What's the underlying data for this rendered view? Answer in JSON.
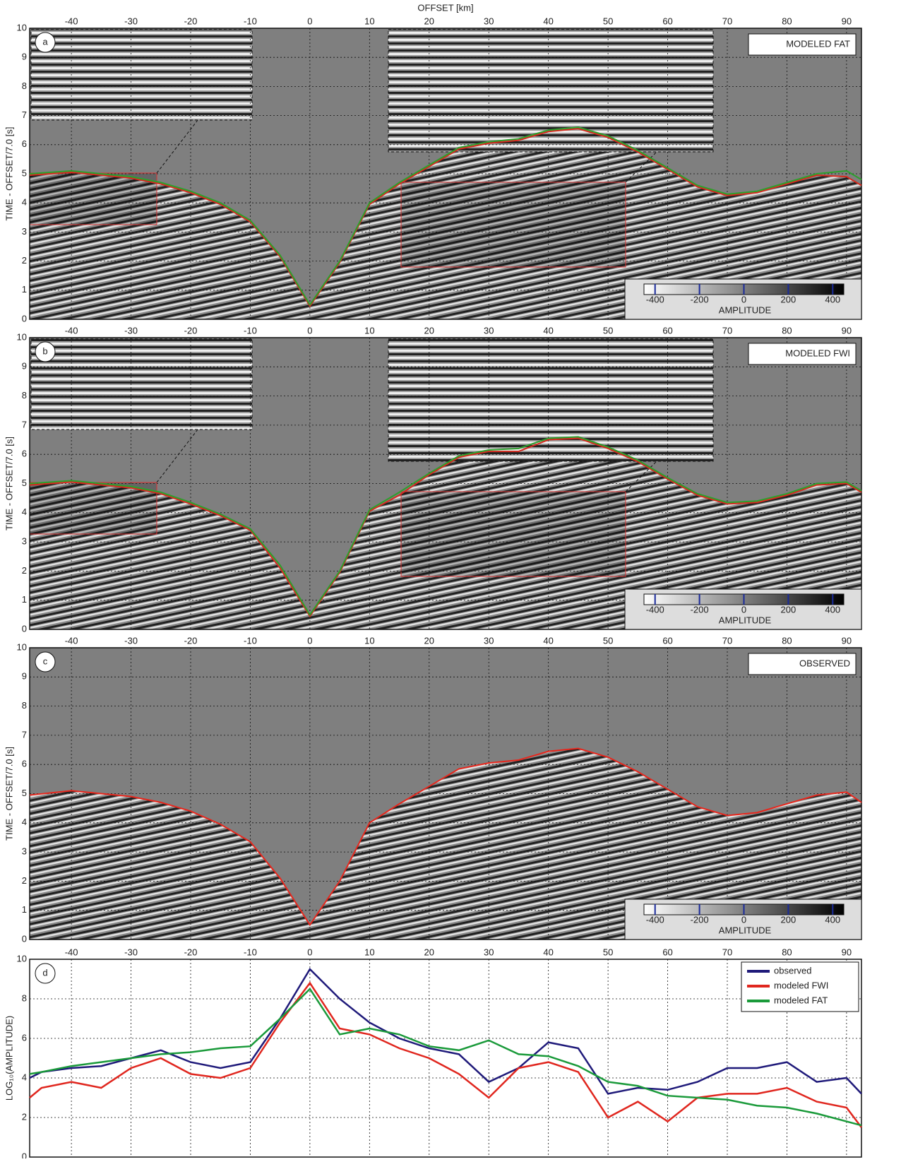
{
  "chart_data": [
    {
      "type": "seismic",
      "label": "a",
      "title": "MODELED FAT",
      "xlabel": "OFFSET [km]",
      "ylabel": "TIME - OFFSET/7.0  [s]",
      "xlim": [
        -47,
        92.5
      ],
      "xticks": [
        -40,
        -30,
        -20,
        -10,
        0,
        10,
        20,
        30,
        40,
        50,
        60,
        70,
        80,
        90
      ],
      "ylim": [
        0,
        10
      ],
      "yticks": [
        0,
        1,
        2,
        3,
        4,
        5,
        6,
        7,
        8,
        9,
        10
      ],
      "grid": true,
      "insets": true,
      "x": [
        -47,
        -40,
        -35,
        -30,
        -25,
        -20,
        -15,
        -10,
        -5,
        0,
        5,
        10,
        15,
        20,
        25,
        30,
        35,
        40,
        45,
        50,
        55,
        60,
        65,
        70,
        75,
        80,
        85,
        90,
        92.5
      ],
      "series": [
        {
          "color": "#d62a1e",
          "values": [
            4.95,
            5.05,
            4.95,
            4.85,
            4.65,
            4.35,
            3.95,
            3.35,
            2.15,
            0.45,
            1.95,
            3.95,
            4.65,
            5.25,
            5.85,
            6.05,
            6.15,
            6.45,
            6.55,
            6.25,
            5.75,
            5.15,
            4.55,
            4.25,
            4.35,
            4.65,
            4.95,
            4.9,
            4.6
          ]
        },
        {
          "color": "#2ca02c",
          "values": [
            5.0,
            5.1,
            5.0,
            4.9,
            4.7,
            4.4,
            4.0,
            3.4,
            2.2,
            0.5,
            2.0,
            4.0,
            4.7,
            5.3,
            5.9,
            6.1,
            6.2,
            6.5,
            6.6,
            6.3,
            5.8,
            5.2,
            4.6,
            4.3,
            4.4,
            4.7,
            5.0,
            5.1,
            4.8
          ]
        }
      ],
      "colorbar": {
        "label": "AMPLITUDE",
        "clim": [
          -450,
          450
        ],
        "ticks": [
          -400,
          -200,
          0,
          200,
          400
        ]
      }
    },
    {
      "type": "seismic",
      "label": "b",
      "title": "MODELED FWI",
      "ylabel": "TIME - OFFSET/7.0  [s]",
      "xlim": [
        -47,
        92.5
      ],
      "xticks": [
        -40,
        -30,
        -20,
        -10,
        0,
        10,
        20,
        30,
        40,
        50,
        60,
        70,
        80,
        90
      ],
      "ylim": [
        0,
        10
      ],
      "yticks": [
        0,
        1,
        2,
        3,
        4,
        5,
        6,
        7,
        8,
        9,
        10
      ],
      "grid": true,
      "insets": true,
      "x": [
        -47,
        -40,
        -35,
        -30,
        -25,
        -20,
        -15,
        -10,
        -5,
        0,
        5,
        10,
        15,
        20,
        25,
        30,
        35,
        40,
        45,
        50,
        55,
        60,
        65,
        70,
        75,
        80,
        85,
        90,
        92.5
      ],
      "series": [
        {
          "color": "#d62a1e",
          "values": [
            4.95,
            5.05,
            4.95,
            4.85,
            4.65,
            4.3,
            3.9,
            3.4,
            2.1,
            0.45,
            1.95,
            4.05,
            4.6,
            5.3,
            5.9,
            6.1,
            6.1,
            6.5,
            6.55,
            6.2,
            5.75,
            5.15,
            4.6,
            4.3,
            4.35,
            4.6,
            4.95,
            5.0,
            4.7
          ]
        },
        {
          "color": "#2ca02c",
          "values": [
            5.0,
            5.1,
            5.0,
            4.9,
            4.7,
            4.35,
            3.95,
            3.45,
            2.2,
            0.5,
            2.0,
            4.1,
            4.7,
            5.35,
            5.95,
            6.15,
            6.2,
            6.55,
            6.6,
            6.25,
            5.8,
            5.2,
            4.65,
            4.35,
            4.4,
            4.65,
            5.0,
            5.05,
            4.75
          ]
        }
      ],
      "colorbar": {
        "label": "AMPLITUDE",
        "clim": [
          -450,
          450
        ],
        "ticks": [
          -400,
          -200,
          0,
          200,
          400
        ]
      }
    },
    {
      "type": "seismic",
      "label": "c",
      "title": "OBSERVED",
      "ylabel": "TIME - OFFSET/7.0  [s]",
      "xlim": [
        -47,
        92.5
      ],
      "xticks": [
        -40,
        -30,
        -20,
        -10,
        0,
        10,
        20,
        30,
        40,
        50,
        60,
        70,
        80,
        90
      ],
      "ylim": [
        0,
        10
      ],
      "yticks": [
        0,
        1,
        2,
        3,
        4,
        5,
        6,
        7,
        8,
        9,
        10
      ],
      "grid": true,
      "insets": false,
      "x": [
        -47,
        -40,
        -35,
        -30,
        -25,
        -20,
        -15,
        -10,
        -5,
        0,
        5,
        10,
        15,
        20,
        25,
        30,
        35,
        40,
        45,
        50,
        55,
        60,
        65,
        70,
        75,
        80,
        85,
        90,
        92.5
      ],
      "series": [
        {
          "color": "#e8261c",
          "values": [
            4.95,
            5.1,
            5.0,
            4.9,
            4.7,
            4.4,
            3.95,
            3.35,
            2.1,
            0.5,
            2.0,
            4.0,
            4.65,
            5.25,
            5.85,
            6.05,
            6.15,
            6.45,
            6.55,
            6.25,
            5.75,
            5.15,
            4.55,
            4.25,
            4.35,
            4.65,
            4.95,
            5.05,
            4.7
          ]
        }
      ],
      "colorbar": {
        "label": "AMPLITUDE",
        "clim": [
          -450,
          450
        ],
        "ticks": [
          -400,
          -200,
          0,
          200,
          400
        ]
      }
    },
    {
      "type": "line",
      "label": "d",
      "ylabel": "LOG₁₀(AMPLITUDE)",
      "xlim": [
        -47,
        92.5
      ],
      "xticks": [
        -40,
        -30,
        -20,
        -10,
        0,
        10,
        20,
        30,
        40,
        50,
        60,
        70,
        80,
        90
      ],
      "ylim": [
        0,
        10
      ],
      "yticks": [
        0,
        2,
        4,
        6,
        8,
        10
      ],
      "grid": true,
      "legend": "top-right",
      "x": [
        -47,
        -45,
        -40,
        -35,
        -30,
        -25,
        -20,
        -15,
        -10,
        -5,
        0,
        5,
        10,
        15,
        20,
        25,
        30,
        35,
        40,
        45,
        50,
        55,
        60,
        65,
        70,
        75,
        80,
        85,
        90,
        92.5
      ],
      "series": [
        {
          "name": "observed",
          "color": "#1f1a7a",
          "values": [
            4.0,
            4.3,
            4.5,
            4.6,
            5.0,
            5.4,
            4.8,
            4.5,
            4.8,
            7.0,
            9.5,
            8.0,
            6.8,
            6.0,
            5.5,
            5.2,
            3.8,
            4.5,
            5.8,
            5.5,
            3.2,
            3.5,
            3.4,
            3.8,
            4.5,
            4.5,
            4.8,
            3.8,
            4.0,
            3.2
          ]
        },
        {
          "name": "modeled FWI",
          "color": "#e0261e",
          "values": [
            3.0,
            3.5,
            3.8,
            3.5,
            4.5,
            5.0,
            4.2,
            4.0,
            4.5,
            6.8,
            8.8,
            6.5,
            6.2,
            5.5,
            5.0,
            4.2,
            3.0,
            4.5,
            4.8,
            4.3,
            2.0,
            2.8,
            1.8,
            3.0,
            3.2,
            3.2,
            3.5,
            2.8,
            2.5,
            1.5
          ]
        },
        {
          "name": "modeled FAT",
          "color": "#1a9a3a",
          "values": [
            4.2,
            4.3,
            4.6,
            4.8,
            5.0,
            5.2,
            5.3,
            5.5,
            5.6,
            7.0,
            8.5,
            6.2,
            6.5,
            6.2,
            5.6,
            5.4,
            5.9,
            5.2,
            5.1,
            4.6,
            3.8,
            3.6,
            3.1,
            3.0,
            2.9,
            2.6,
            2.5,
            2.2,
            1.8,
            1.6
          ]
        }
      ]
    }
  ]
}
